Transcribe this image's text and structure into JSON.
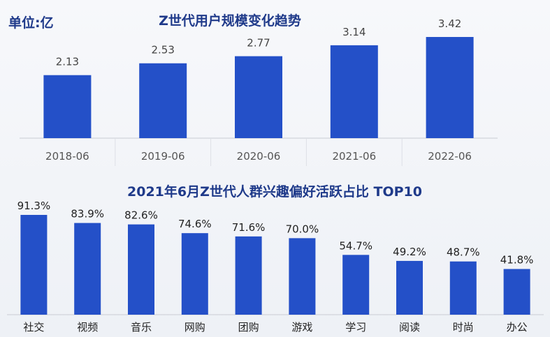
{
  "unit_label": "单位:亿",
  "chart_data": [
    {
      "type": "bar",
      "title": "Z世代用户规模变化趋势",
      "categories": [
        "2018-06",
        "2019-06",
        "2020-06",
        "2021-06",
        "2022-06"
      ],
      "values": [
        2.13,
        2.53,
        2.77,
        3.14,
        3.42
      ],
      "value_labels": [
        "2.13",
        "2.53",
        "2.77",
        "3.14",
        "3.42"
      ],
      "ylim": [
        0,
        3.42
      ],
      "grid": false,
      "color": "#2450c8"
    },
    {
      "type": "bar",
      "title": "2021年6月Z世代人群兴趣偏好活跃占比 TOP10",
      "categories": [
        "社交",
        "视频",
        "音乐",
        "网购",
        "团购",
        "游戏",
        "学习",
        "阅读",
        "时尚",
        "办公"
      ],
      "values": [
        91.3,
        83.9,
        82.6,
        74.6,
        71.6,
        70.0,
        54.7,
        49.2,
        48.7,
        41.8
      ],
      "value_labels": [
        "91.3%",
        "83.9%",
        "82.6%",
        "74.6%",
        "71.6%",
        "70.0%",
        "54.7%",
        "49.2%",
        "48.7%",
        "41.8%"
      ],
      "ylim": [
        0,
        91.3
      ],
      "grid": false,
      "color": "#2450c8"
    }
  ]
}
